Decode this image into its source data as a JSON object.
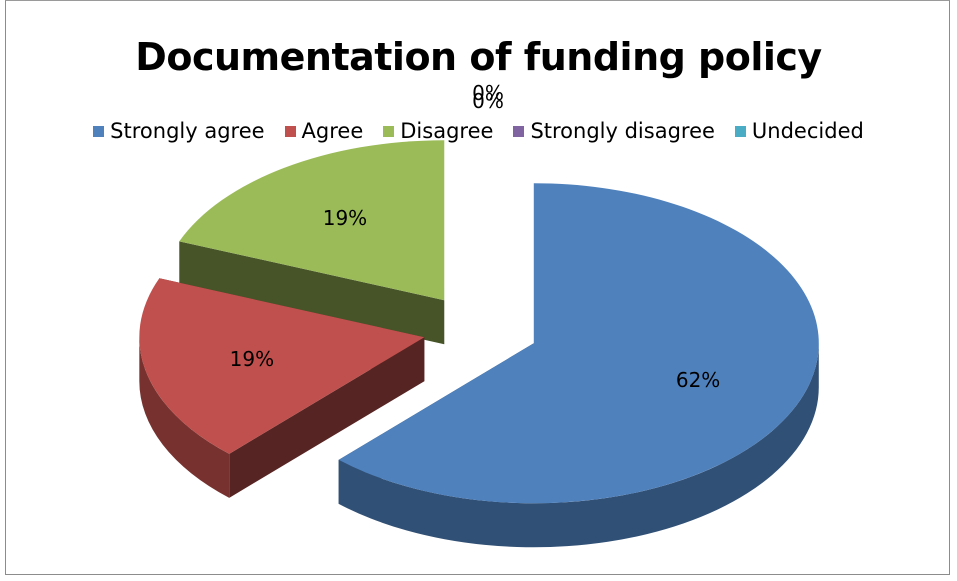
{
  "chart_data": {
    "type": "pie",
    "title": "Documentation of funding policy",
    "legend_position": "top",
    "slices": [
      {
        "label": "Strongly agree",
        "value": 62,
        "value_label": "62%",
        "color": "#4F81BD"
      },
      {
        "label": "Agree",
        "value": 19,
        "value_label": "19%",
        "color": "#C0504D"
      },
      {
        "label": "Disagree",
        "value": 19,
        "value_label": "19%",
        "color": "#9BBB59"
      },
      {
        "label": "Strongly disagree",
        "value": 0,
        "value_label": "0%",
        "color": "#8064A2"
      },
      {
        "label": "Undecided",
        "value": 0,
        "value_label": "0%",
        "color": "#4BACC6"
      }
    ],
    "style": "3d-exploded"
  }
}
